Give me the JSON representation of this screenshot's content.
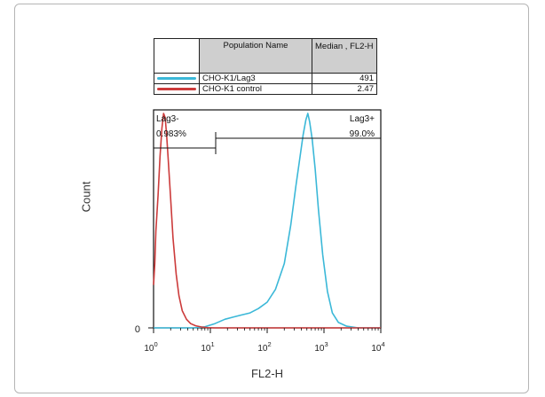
{
  "legend": {
    "header_population": "Population Name",
    "header_median": "Median , FL2-H",
    "rows": [
      {
        "name": "CHO-K1/Lag3",
        "median": "491",
        "color": "#3bb8d8"
      },
      {
        "name": "CHO-K1 control",
        "median": "2.47",
        "color": "#cc3b3b"
      }
    ]
  },
  "axis": {
    "xlabel": "FL2-H",
    "ylabel": "Count",
    "y_zero_label": "0",
    "x_ticks": [
      {
        "base": "10",
        "exp": "0",
        "value": 1
      },
      {
        "base": "10",
        "exp": "1",
        "value": 10
      },
      {
        "base": "10",
        "exp": "2",
        "value": 100
      },
      {
        "base": "10",
        "exp": "3",
        "value": 1000
      },
      {
        "base": "10",
        "exp": "4",
        "value": 10000
      }
    ]
  },
  "gates": {
    "left_name": "Lag3-",
    "left_pct": "0.983%",
    "right_name": "Lag3+",
    "right_pct": "99.0%"
  },
  "chart_data": {
    "type": "line",
    "title": "",
    "xlabel": "FL2-H",
    "ylabel": "Count",
    "xscale": "log",
    "xlim": [
      1,
      10000
    ],
    "ylim": [
      0,
      1
    ],
    "grid": false,
    "series": [
      {
        "name": "CHO-K1/Lag3",
        "color": "#3bb8d8",
        "x": [
          1,
          1.5,
          2,
          3,
          5,
          8,
          12,
          18,
          25,
          35,
          50,
          70,
          100,
          140,
          200,
          260,
          320,
          380,
          430,
          480,
          520,
          560,
          620,
          700,
          800,
          950,
          1150,
          1400,
          1800,
          2500,
          4000,
          10000
        ],
        "y": [
          0,
          0,
          0,
          0,
          0,
          0.005,
          0.02,
          0.04,
          0.05,
          0.06,
          0.07,
          0.09,
          0.12,
          0.18,
          0.3,
          0.48,
          0.66,
          0.8,
          0.9,
          0.97,
          1.0,
          0.96,
          0.88,
          0.74,
          0.55,
          0.34,
          0.17,
          0.07,
          0.025,
          0.008,
          0,
          0
        ]
      },
      {
        "name": "CHO-K1 control",
        "color": "#cc3b3b",
        "x": [
          1,
          1.05,
          1.1,
          1.2,
          1.3,
          1.4,
          1.5,
          1.6,
          1.7,
          1.8,
          2.0,
          2.2,
          2.5,
          2.8,
          3.2,
          3.8,
          4.5,
          5.5,
          7,
          9,
          12,
          10000
        ],
        "y": [
          0.2,
          0.3,
          0.45,
          0.62,
          0.8,
          0.93,
          1.0,
          0.98,
          0.9,
          0.8,
          0.6,
          0.42,
          0.25,
          0.15,
          0.08,
          0.04,
          0.02,
          0.01,
          0.004,
          0.001,
          0,
          0
        ]
      }
    ]
  }
}
